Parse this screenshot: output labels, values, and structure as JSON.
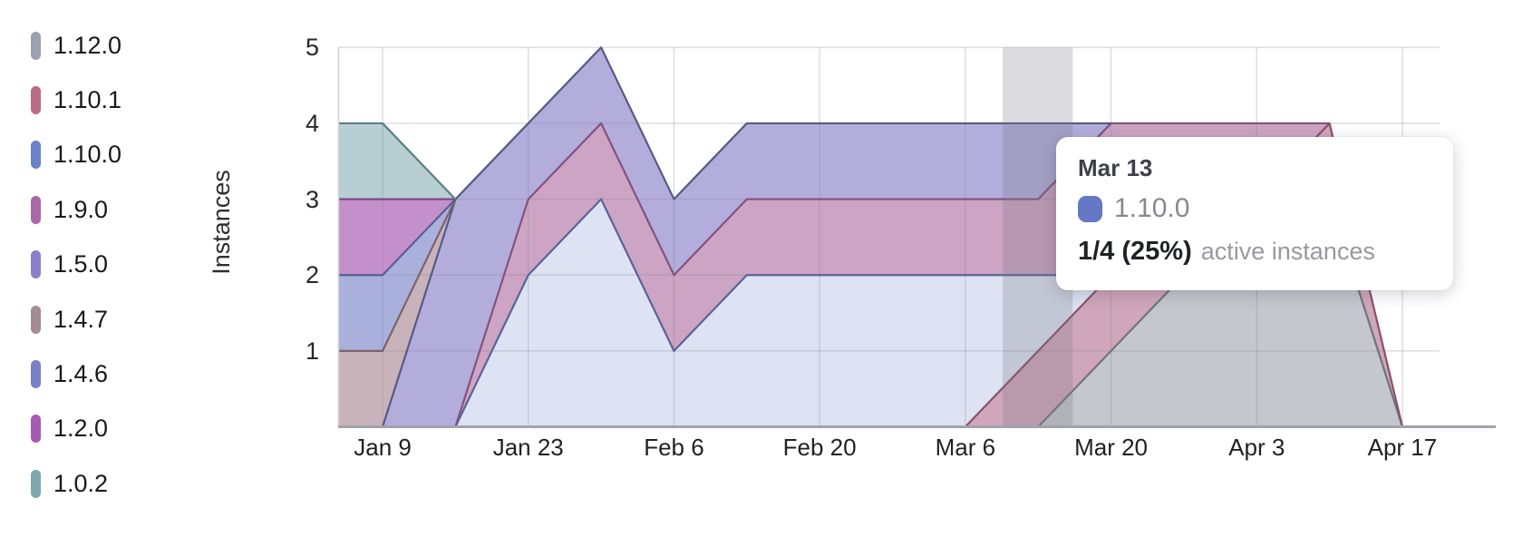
{
  "chart": {
    "ylabel": "Instances",
    "colors": {
      "background": "#ffffff",
      "axis": "#a1a3ab",
      "axis_left": "#cfd0d5",
      "grid_overlay": "rgba(128,130,146,0.25)",
      "hover_band": "rgba(118,120,128,0.26)"
    }
  },
  "chart_data": {
    "type": "area",
    "stacked": true,
    "title": "",
    "xlabel": "",
    "ylabel": "Instances",
    "ylim": [
      0,
      5
    ],
    "y_ticks": [
      1,
      2,
      3,
      4,
      5
    ],
    "x": [
      "Jan 2",
      "Jan 9",
      "Jan 16",
      "Jan 23",
      "Jan 30",
      "Feb 6",
      "Feb 13",
      "Feb 20",
      "Feb 27",
      "Mar 6",
      "Mar 13",
      "Mar 20",
      "Mar 27",
      "Apr 3",
      "Apr 10",
      "Apr 17"
    ],
    "x_tick_labels": [
      "Jan 9",
      "Jan 23",
      "Feb 6",
      "Feb 20",
      "Mar 6",
      "Mar 20",
      "Apr 3",
      "Apr 17"
    ],
    "legend_position": "left",
    "grid": true,
    "series": [
      {
        "name": "1.12.0",
        "color": "#99a2ae",
        "fill": "#c4c7cd",
        "stroke": "#6f7480",
        "values": [
          0,
          0,
          0,
          0,
          0,
          0,
          0,
          0,
          0,
          0,
          0,
          1,
          2,
          2,
          3,
          0
        ]
      },
      {
        "name": "1.10.1",
        "color": "#bb6b85",
        "fill": "#d0a6ba",
        "stroke": "#8c5068",
        "values": [
          0,
          0,
          0,
          0,
          0,
          0,
          0,
          0,
          0,
          0,
          1,
          1,
          1,
          1,
          1,
          0
        ]
      },
      {
        "name": "1.10.0",
        "color": "#6a82c6",
        "fill": "#dde3f3",
        "stroke": "#5a6398",
        "values": [
          0,
          0,
          0,
          2,
          3,
          1,
          2,
          2,
          2,
          2,
          1,
          0,
          0,
          0,
          0,
          0
        ]
      },
      {
        "name": "1.9.0",
        "color": "#ab68a6",
        "fill": "#cda4c3",
        "stroke": "#82537e",
        "values": [
          0,
          0,
          0,
          1,
          1,
          1,
          1,
          1,
          1,
          1,
          1,
          2,
          1,
          1,
          0,
          0
        ]
      },
      {
        "name": "1.5.0",
        "color": "#8a80c9",
        "fill": "#b3addc",
        "stroke": "#555a85",
        "values": [
          0,
          0,
          3,
          1,
          1,
          1,
          1,
          1,
          1,
          1,
          1,
          0,
          0,
          0,
          0,
          0
        ]
      },
      {
        "name": "1.4.7",
        "color": "#a58b94",
        "fill": "#c9b3ba",
        "stroke": "#7b636d",
        "values": [
          1,
          1,
          0,
          0,
          0,
          0,
          0,
          0,
          0,
          0,
          0,
          0,
          0,
          0,
          0,
          0
        ]
      },
      {
        "name": "1.4.6",
        "color": "#7a80c6",
        "fill": "#aab0dc",
        "stroke": "#5a5f93",
        "values": [
          1,
          1,
          0,
          0,
          0,
          0,
          0,
          0,
          0,
          0,
          0,
          0,
          0,
          0,
          0,
          0
        ]
      },
      {
        "name": "1.2.0",
        "color": "#a55bb1",
        "fill": "#c490cc",
        "stroke": "#7a4584",
        "values": [
          1,
          1,
          0,
          0,
          0,
          0,
          0,
          0,
          0,
          0,
          0,
          0,
          0,
          0,
          0,
          0
        ]
      },
      {
        "name": "1.0.2",
        "color": "#7ea7ae",
        "fill": "#b7ced2",
        "stroke": "#5d7f85",
        "values": [
          1,
          1,
          0,
          0,
          0,
          0,
          0,
          0,
          0,
          0,
          0,
          0,
          0,
          0,
          0,
          0
        ]
      }
    ]
  },
  "tooltip": {
    "date": "Mar 13",
    "series": "1.10.0",
    "series_color": "#6478c4",
    "value": "1/4 (25%)",
    "caption": "active instances"
  }
}
